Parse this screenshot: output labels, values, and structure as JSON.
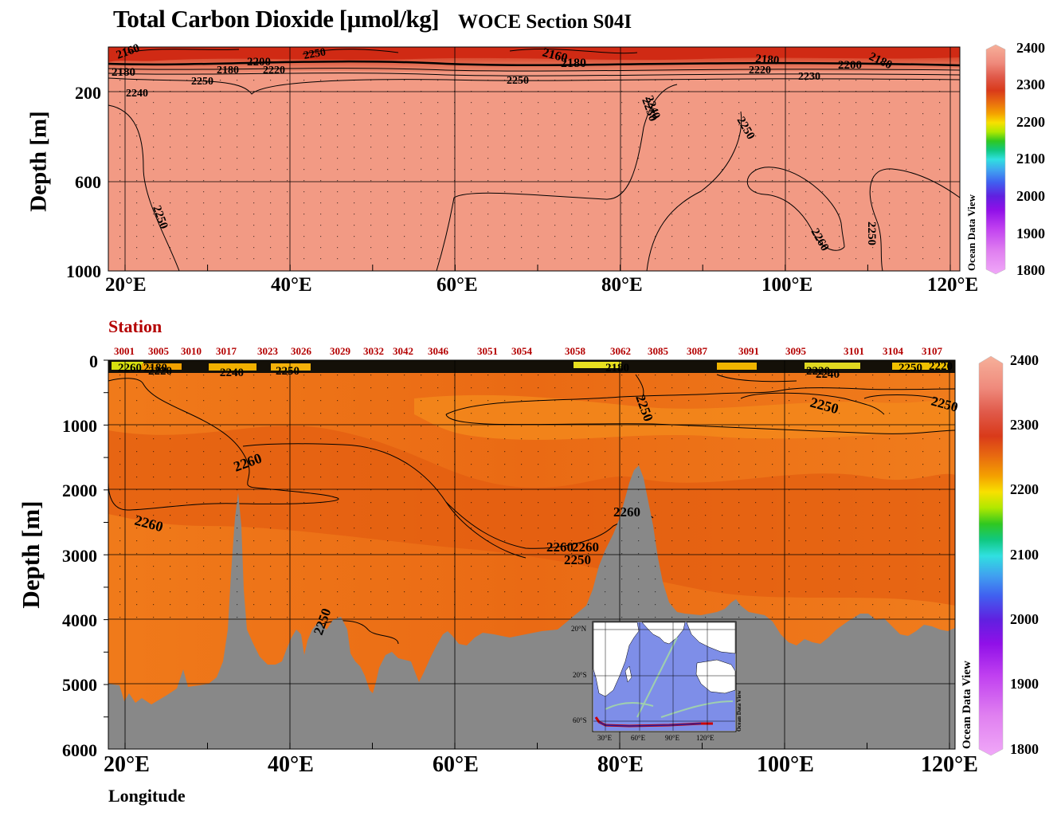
{
  "title": "Total Carbon Dioxide [µmol/kg]",
  "subtitle": "WOCE Section S04I",
  "watermark": "Ocean Data View",
  "chart_data": [
    {
      "type": "heatmap",
      "panel": "upper",
      "ylabel": "Depth [m]",
      "xlabel": "",
      "xlim": [
        18,
        121
      ],
      "ylim": [
        1000,
        0
      ],
      "x_ticks": [
        "20°E",
        "40°E",
        "60°E",
        "80°E",
        "100°E",
        "120°E"
      ],
      "y_ticks": [
        "200",
        "600",
        "1000"
      ],
      "colorbar": {
        "min": 1800,
        "max": 2400,
        "ticks": [
          "2400",
          "2300",
          "2200",
          "2100",
          "2000",
          "1900",
          "1800"
        ]
      },
      "contour_labels": [
        "2160",
        "2180",
        "2200",
        "2250",
        "2180",
        "2220",
        "2250",
        "2240",
        "2250",
        "2240",
        "2160",
        "2180",
        "2180",
        "2200",
        "2180",
        "2220",
        "2230",
        "2250",
        "2250",
        "2260",
        "2250",
        "2250"
      ]
    },
    {
      "type": "heatmap",
      "panel": "lower",
      "ylabel": "Depth [m]",
      "xlabel": "Longitude",
      "xlim": [
        18,
        121
      ],
      "ylim": [
        6000,
        0
      ],
      "x_ticks": [
        "20°E",
        "40°E",
        "60°E",
        "80°E",
        "100°E",
        "120°E"
      ],
      "y_ticks": [
        "0",
        "1000",
        "2000",
        "3000",
        "4000",
        "5000",
        "6000"
      ],
      "stations_label": "Station",
      "stations": [
        "3001",
        "3005",
        "3010",
        "3017",
        "3023",
        "3026",
        "3029",
        "3032",
        "3042",
        "3046",
        "3051",
        "3054",
        "3058",
        "3062",
        "3085",
        "3087",
        "3091",
        "3095",
        "3101",
        "3104",
        "3107"
      ],
      "colorbar": {
        "min": 1800,
        "max": 2400,
        "ticks": [
          "2400",
          "2300",
          "2200",
          "2100",
          "2000",
          "1900",
          "1800"
        ]
      },
      "contour_labels": [
        "2260",
        "2180",
        "2220",
        "2240",
        "2250",
        "2180",
        "2250",
        "2220",
        "2240",
        "2250",
        "2220",
        "2260",
        "2260",
        "2260",
        "2260",
        "2260",
        "2250",
        "2250",
        "2250",
        "2250"
      ]
    }
  ],
  "inset_map": {
    "lat_labels": [
      "20°N",
      "20°S",
      "60°S"
    ],
    "lon_labels": [
      "30°E",
      "60°E",
      "90°E",
      "120°E"
    ]
  }
}
